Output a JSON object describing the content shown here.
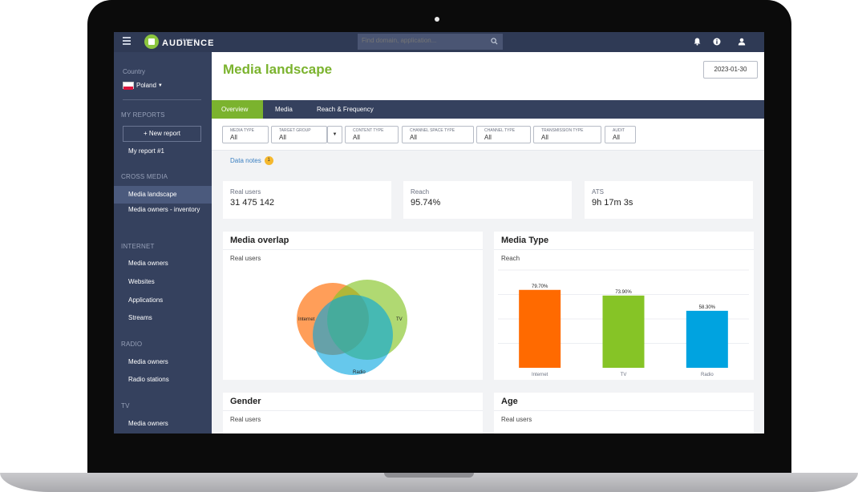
{
  "brand": {
    "name": "AUDIENCE",
    "prefix": "GEMIUS"
  },
  "search": {
    "placeholder": "Find domain, application..."
  },
  "sidebar": {
    "country_label": "Country",
    "country_value": "Poland",
    "my_reports_title": "MY REPORTS",
    "new_report": "+ New report",
    "my_report_1": "My report #1",
    "cross_media_title": "CROSS MEDIA",
    "cross_media_items": [
      "Media landscape",
      "Media owners - inventory"
    ],
    "internet_title": "INTERNET",
    "internet_items": [
      "Media owners",
      "Websites",
      "Applications",
      "Streams"
    ],
    "radio_title": "RADIO",
    "radio_items": [
      "Media owners",
      "Radio stations"
    ],
    "tv_title": "TV",
    "tv_items": [
      "Media owners"
    ]
  },
  "header": {
    "title": "Media landscape",
    "date": "2023-01-30"
  },
  "tabs": [
    {
      "label": "Overview"
    },
    {
      "label": "Media"
    },
    {
      "label": "Reach & Frequency"
    }
  ],
  "filters": [
    {
      "label": "MEDIA TYPE",
      "value": "All"
    },
    {
      "label": "TARGET GROUP",
      "value": "All"
    },
    {
      "label": "CONTENT TYPE",
      "value": "All"
    },
    {
      "label": "CHANNEL SPACE TYPE",
      "value": "All"
    },
    {
      "label": "CHANNEL TYPE",
      "value": "All"
    },
    {
      "label": "TRANSMISSION TYPE",
      "value": "All"
    },
    {
      "label": "AUDIT",
      "value": "All"
    }
  ],
  "data_notes": {
    "label": "Data notes",
    "count": "1"
  },
  "kpis": [
    {
      "label": "Real users",
      "value": "31 475 142"
    },
    {
      "label": "Reach",
      "value": "95.74%"
    },
    {
      "label": "ATS",
      "value": "9h 17m 3s"
    }
  ],
  "overlap_card": {
    "title": "Media overlap",
    "subtitle": "Real users",
    "labels": {
      "internet": "Internet",
      "tv": "TV",
      "radio": "Radio"
    }
  },
  "media_type_card": {
    "title": "Media Type",
    "subtitle": "Reach"
  },
  "gender_card": {
    "title": "Gender",
    "subtitle": "Real users"
  },
  "age_card": {
    "title": "Age",
    "subtitle": "Real users"
  },
  "colors": {
    "internet": "#ff6a00",
    "tv": "#86c426",
    "radio": "#00a3e0",
    "accent": "#7bb32e",
    "nav": "#35415e"
  },
  "chart_data": {
    "type": "bar",
    "categories": [
      "Internet",
      "TV",
      "Radio"
    ],
    "values": [
      79.7,
      73.9,
      58.3
    ],
    "value_labels": [
      "79.70%",
      "73.90%",
      "58.30%"
    ],
    "title": "",
    "xlabel": "",
    "ylabel": "",
    "ylim": [
      0,
      100
    ],
    "grid": true
  }
}
